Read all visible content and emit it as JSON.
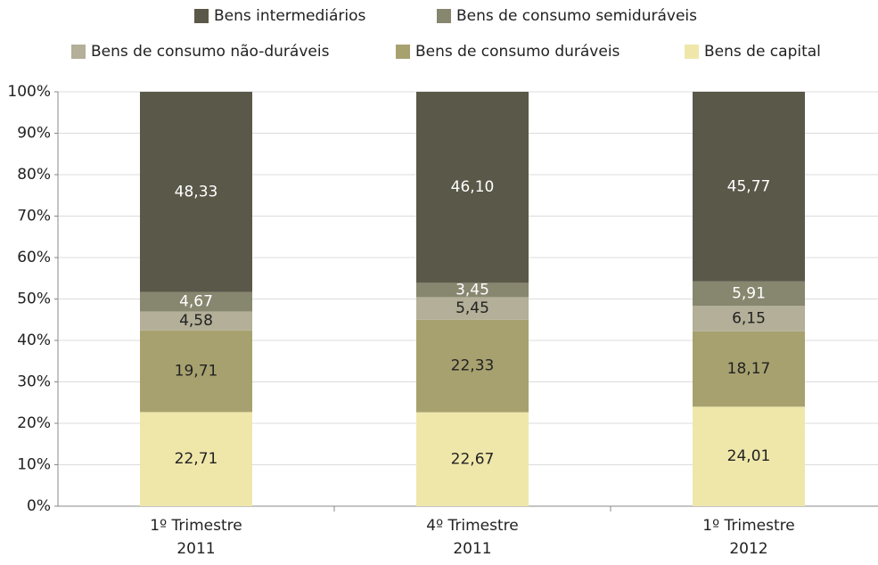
{
  "chart_data": {
    "type": "stacked_bar",
    "categories": [
      [
        "1º Trimestre",
        "2011"
      ],
      [
        "4º Trimestre",
        "2011"
      ],
      [
        "1º Trimestre",
        "2012"
      ]
    ],
    "series": [
      {
        "name": "Bens intermediários",
        "color": "#5a5849",
        "values": [
          48.33,
          46.1,
          45.77
        ],
        "value_labels": [
          "48,33",
          "46,10",
          "45,77"
        ]
      },
      {
        "name": "Bens de consumo semiduráveis",
        "color": "#87866f",
        "values": [
          4.67,
          3.45,
          5.91
        ],
        "value_labels": [
          "4,67",
          "3,45",
          "5,91"
        ]
      },
      {
        "name": "Bens de consumo não-duráveis",
        "color": "#b3af98",
        "values": [
          4.58,
          5.45,
          6.15
        ],
        "value_labels": [
          "4,58",
          "5,45",
          "6,15"
        ]
      },
      {
        "name": "Bens de consumo duráveis",
        "color": "#a7a16f",
        "values": [
          19.71,
          22.33,
          18.17
        ],
        "value_labels": [
          "19,71",
          "22,33",
          "18,17"
        ]
      },
      {
        "name": "Bens de capital",
        "color": "#efe7aa",
        "values": [
          22.71,
          22.67,
          24.01
        ],
        "value_labels": [
          "22,71",
          "22,67",
          "24,01"
        ]
      }
    ],
    "ylim": [
      0,
      100
    ],
    "yticks": [
      {
        "value": 0,
        "label": "0%"
      },
      {
        "value": 10,
        "label": "10%"
      },
      {
        "value": 20,
        "label": "20%"
      },
      {
        "value": 30,
        "label": "30%"
      },
      {
        "value": 40,
        "label": "40%"
      },
      {
        "value": 50,
        "label": "50%"
      },
      {
        "value": 60,
        "label": "60%"
      },
      {
        "value": 70,
        "label": "70%"
      },
      {
        "value": 80,
        "label": "80%"
      },
      {
        "value": 90,
        "label": "90%"
      },
      {
        "value": 100,
        "label": "100%"
      }
    ],
    "grid": true,
    "legend": "top"
  }
}
